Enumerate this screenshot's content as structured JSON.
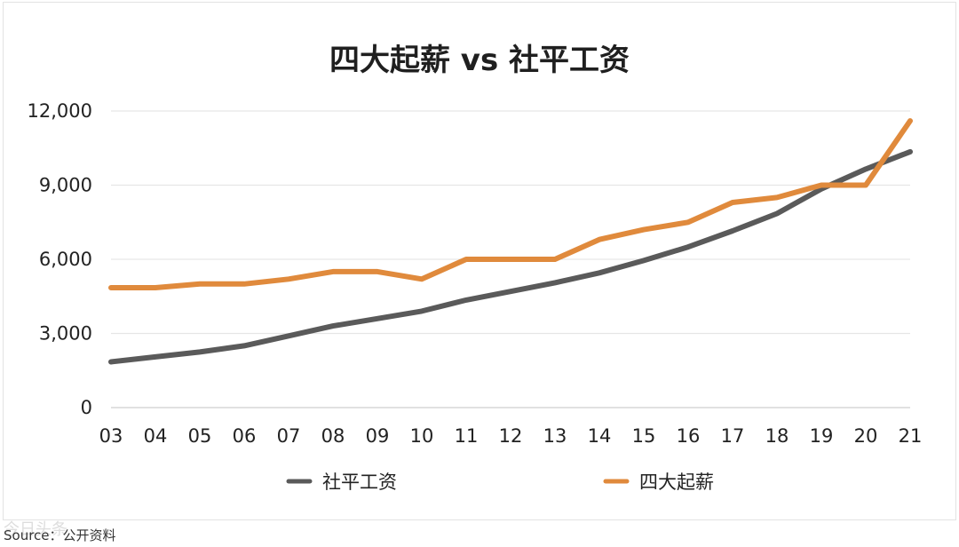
{
  "chart_data": {
    "type": "line",
    "title": "四大起薪 vs 社平工资",
    "categories": [
      "03",
      "04",
      "05",
      "06",
      "07",
      "08",
      "09",
      "10",
      "11",
      "12",
      "13",
      "14",
      "15",
      "16",
      "17",
      "18",
      "19",
      "20",
      "21"
    ],
    "series": [
      {
        "name": "社平工资",
        "color": "#5a5a5a",
        "values": [
          1850,
          2050,
          2250,
          2500,
          2900,
          3300,
          3600,
          3900,
          4350,
          4700,
          5050,
          5450,
          5950,
          6500,
          7150,
          7850,
          8850,
          9650,
          10350
        ]
      },
      {
        "name": "四大起薪",
        "color": "#e08a3c",
        "values": [
          4850,
          4850,
          5000,
          5000,
          5200,
          5500,
          5500,
          5200,
          6000,
          6000,
          6000,
          6800,
          7200,
          7500,
          8300,
          8500,
          9000,
          9000,
          11600
        ]
      }
    ],
    "yticks": [
      "0",
      "3,000",
      "6,000",
      "9,000",
      "12,000"
    ],
    "ylim": [
      0,
      12000
    ],
    "grid": true,
    "legend": "bottom"
  },
  "source": "Source：公开资料",
  "watermark": "今日头条"
}
